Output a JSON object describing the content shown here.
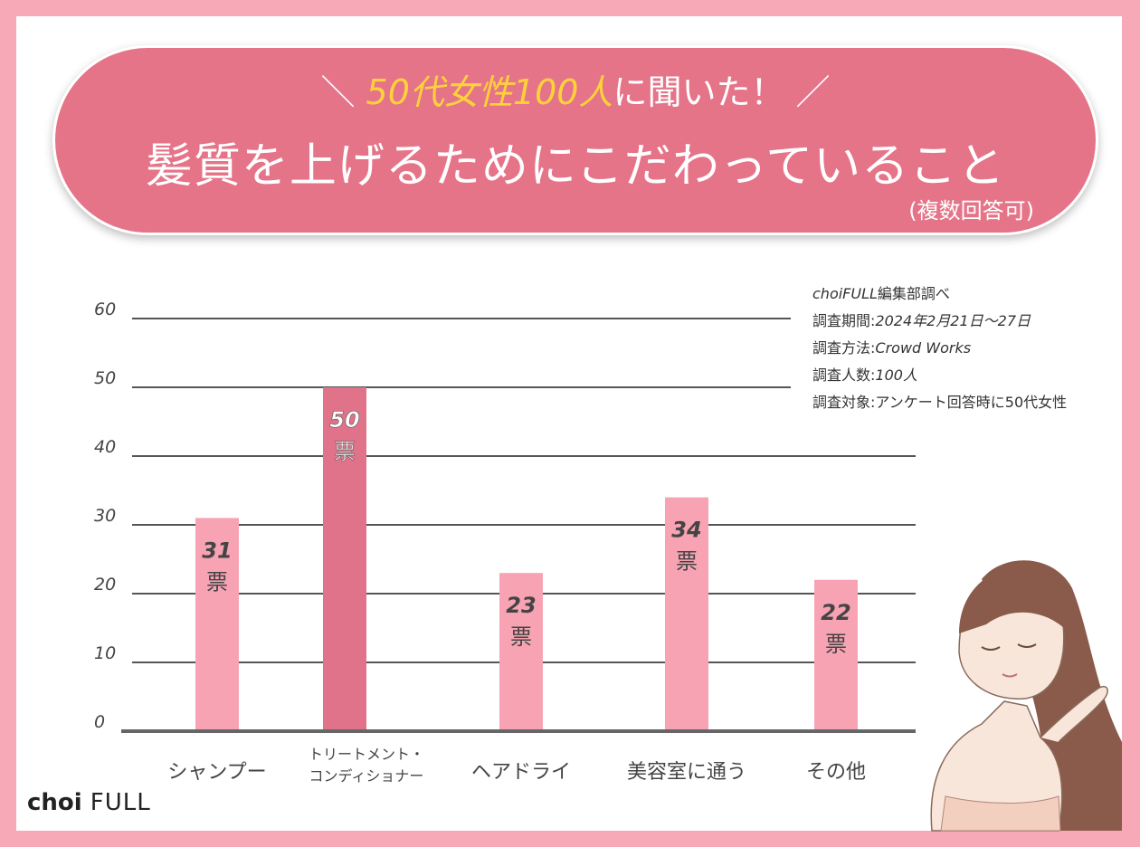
{
  "header": {
    "slash_left": "＼",
    "highlight_1": "50代女性100人",
    "text_1": "に聞いた！",
    "slash_right": "／",
    "title": "髪質を上げるためにこだわっていること",
    "note": "(複数回答可)"
  },
  "survey_info": {
    "line1_a": "choiFULL",
    "line1_b": "編集部調べ",
    "line2_a": "調査期間:",
    "line2_b": "2024年2月21日〜27日",
    "line3_a": "調査方法:",
    "line3_b": "Crowd Works",
    "line4_a": "調査人数:",
    "line4_b": "100人",
    "line5_a": "調査対象:",
    "line5_b": "アンケート回答時に50代女性"
  },
  "logo": {
    "part1": "choi",
    "part2": "FULL"
  },
  "chart_data": {
    "type": "bar",
    "categories": [
      "シャンプー",
      "トリートメント・コンディショナー",
      "ヘアドライ",
      "美容室に通う",
      "その他"
    ],
    "category_lines": [
      [
        "シャンプー"
      ],
      [
        "トリートメント・",
        "コンディショナー"
      ],
      [
        "ヘアドライ"
      ],
      [
        "美容室に通う"
      ],
      [
        "その他"
      ]
    ],
    "values": [
      31,
      50,
      23,
      34,
      22
    ],
    "value_unit": "票",
    "ylim": [
      0,
      60
    ],
    "yticks": [
      0,
      10,
      20,
      30,
      40,
      50,
      60
    ],
    "grid": true,
    "colors": {
      "bar": "#f7a3b3",
      "bar_highlight": "#e0738a",
      "grid": "#555555"
    },
    "highlight_index": 1
  }
}
